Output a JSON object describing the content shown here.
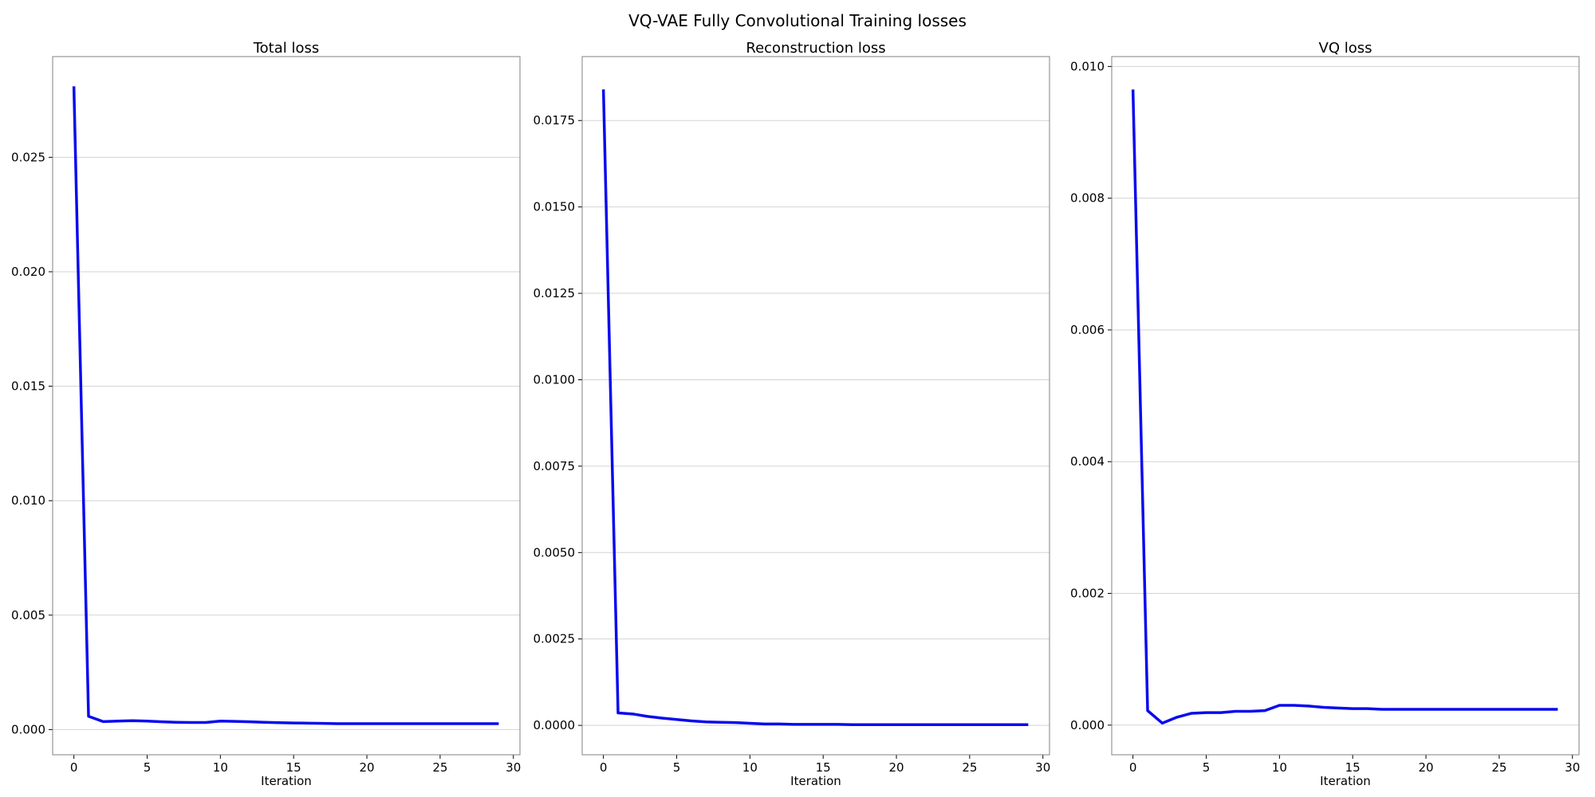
{
  "figure_title": "VQ-VAE Fully Convolutional Training losses",
  "colors": {
    "line": "#0a0aee",
    "grid": "#d3d3d3",
    "frame": "#808080"
  },
  "chart_data": [
    {
      "type": "line",
      "title": "Total loss",
      "xlabel": "Iteration",
      "ylabel": "",
      "grid": "horizontal",
      "xlim": [
        -1.45,
        30.45
      ],
      "ylim": [
        -0.0011,
        0.0294
      ],
      "xticks": [
        0,
        5,
        10,
        15,
        20,
        25,
        30
      ],
      "xtick_labels": [
        "0",
        "5",
        "10",
        "15",
        "20",
        "25",
        "30"
      ],
      "yticks": [
        0.0,
        0.005,
        0.01,
        0.015,
        0.02,
        0.025
      ],
      "ytick_labels": [
        "0.000",
        "0.005",
        "0.010",
        "0.015",
        "0.020",
        "0.025"
      ],
      "series": [
        {
          "x": [
            0,
            1,
            2,
            3,
            4,
            5,
            6,
            7,
            8,
            9,
            10,
            11,
            12,
            13,
            14,
            15,
            16,
            17,
            18,
            19,
            20,
            21,
            22,
            23,
            24,
            25,
            26,
            27,
            28,
            29
          ],
          "values": [
            0.0281,
            0.00058,
            0.00035,
            0.00037,
            0.00039,
            0.00037,
            0.00034,
            0.00032,
            0.00031,
            0.00031,
            0.00037,
            0.00036,
            0.00034,
            0.00032,
            0.0003,
            0.00029,
            0.00028,
            0.00027,
            0.00026,
            0.00026,
            0.00026,
            0.00026,
            0.00026,
            0.00026,
            0.00026,
            0.00026,
            0.00026,
            0.00026,
            0.00026,
            0.00026
          ]
        }
      ]
    },
    {
      "type": "line",
      "title": "Reconstruction loss",
      "xlabel": "Iteration",
      "ylabel": "",
      "grid": "horizontal",
      "xlim": [
        -1.45,
        30.45
      ],
      "ylim": [
        -0.00085,
        0.01935
      ],
      "xticks": [
        0,
        5,
        10,
        15,
        20,
        25,
        30
      ],
      "xtick_labels": [
        "0",
        "5",
        "10",
        "15",
        "20",
        "25",
        "30"
      ],
      "yticks": [
        0.0,
        0.0025,
        0.005,
        0.0075,
        0.01,
        0.0125,
        0.015,
        0.0175
      ],
      "ytick_labels": [
        "0.0000",
        "0.0025",
        "0.0050",
        "0.0075",
        "0.0100",
        "0.0125",
        "0.0150",
        "0.0175"
      ],
      "series": [
        {
          "x": [
            0,
            1,
            2,
            3,
            4,
            5,
            6,
            7,
            8,
            9,
            10,
            11,
            12,
            13,
            14,
            15,
            16,
            17,
            18,
            19,
            20,
            21,
            22,
            23,
            24,
            25,
            26,
            27,
            28,
            29
          ],
          "values": [
            0.0184,
            0.00036,
            0.00033,
            0.00026,
            0.00021,
            0.00017,
            0.00013,
            0.0001,
            9e-05,
            8e-05,
            6e-05,
            4e-05,
            4e-05,
            3e-05,
            3e-05,
            3e-05,
            3e-05,
            2e-05,
            2e-05,
            2e-05,
            2e-05,
            2e-05,
            2e-05,
            2e-05,
            2e-05,
            2e-05,
            2e-05,
            2e-05,
            2e-05,
            2e-05
          ]
        }
      ]
    },
    {
      "type": "line",
      "title": "VQ loss",
      "xlabel": "Iteration",
      "ylabel": "",
      "grid": "horizontal",
      "xlim": [
        -1.45,
        30.45
      ],
      "ylim": [
        -0.00045,
        0.01015
      ],
      "xticks": [
        0,
        5,
        10,
        15,
        20,
        25,
        30
      ],
      "xtick_labels": [
        "0",
        "5",
        "10",
        "15",
        "20",
        "25",
        "30"
      ],
      "yticks": [
        0.0,
        0.002,
        0.004,
        0.006,
        0.008,
        0.01
      ],
      "ytick_labels": [
        "0.000",
        "0.002",
        "0.004",
        "0.006",
        "0.008",
        "0.010"
      ],
      "series": [
        {
          "x": [
            0,
            1,
            2,
            3,
            4,
            5,
            6,
            7,
            8,
            9,
            10,
            11,
            12,
            13,
            14,
            15,
            16,
            17,
            18,
            19,
            20,
            21,
            22,
            23,
            24,
            25,
            26,
            27,
            28,
            29
          ],
          "values": [
            0.00965,
            0.00022,
            3e-05,
            0.00012,
            0.00018,
            0.00019,
            0.00019,
            0.00021,
            0.00021,
            0.00022,
            0.0003,
            0.0003,
            0.00029,
            0.00027,
            0.00026,
            0.00025,
            0.00025,
            0.00024,
            0.00024,
            0.00024,
            0.00024,
            0.00024,
            0.00024,
            0.00024,
            0.00024,
            0.00024,
            0.00024,
            0.00024,
            0.00024,
            0.00024
          ]
        }
      ]
    }
  ]
}
